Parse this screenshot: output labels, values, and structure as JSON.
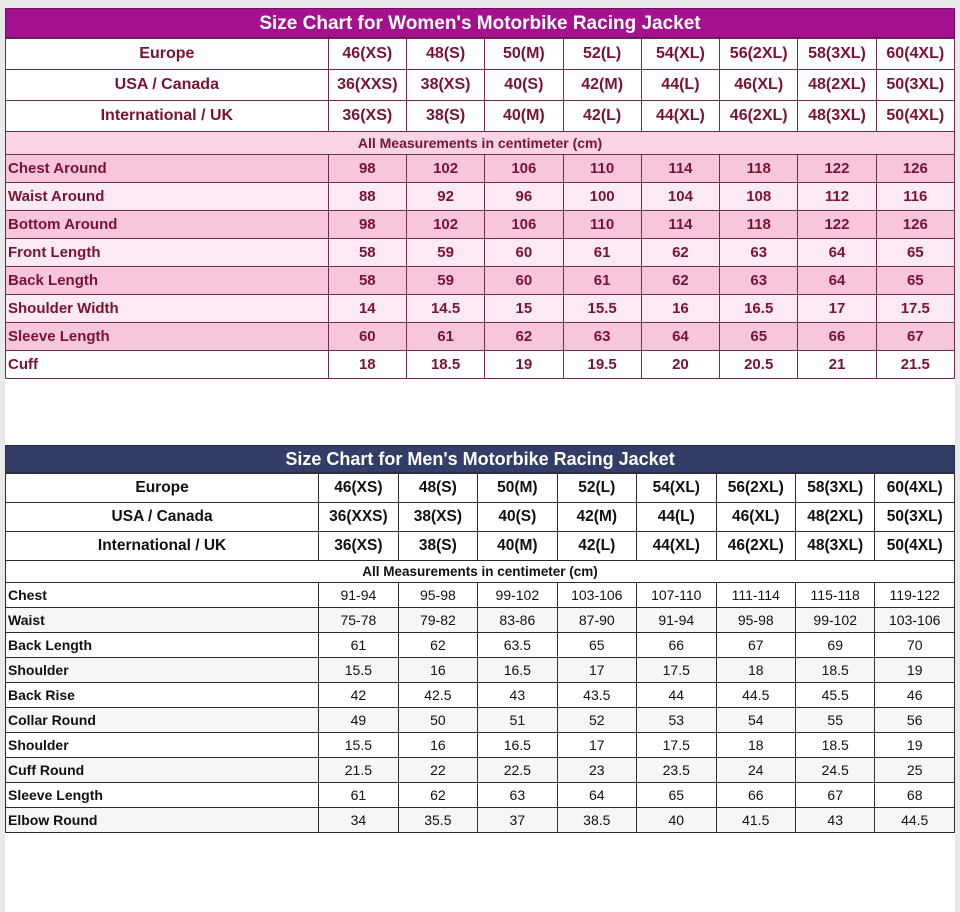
{
  "page": {
    "background_color": "#e9e9e9"
  },
  "women": {
    "title": "Size Chart for Women's Motorbike Racing Jacket",
    "accent_color": "#a3118e",
    "text_color": "#7b1230",
    "header_rows": [
      {
        "label": "Europe",
        "values": [
          "46(XS)",
          "48(S)",
          "50(M)",
          "52(L)",
          "54(XL)",
          "56(2XL)",
          "58(3XL)",
          "60(4XL)"
        ]
      },
      {
        "label": "USA / Canada",
        "values": [
          "36(XXS)",
          "38(XS)",
          "40(S)",
          "42(M)",
          "44(L)",
          "46(XL)",
          "48(2XL)",
          "50(3XL)"
        ]
      },
      {
        "label": "International / UK",
        "values": [
          "36(XS)",
          "38(S)",
          "40(M)",
          "42(L)",
          "44(XL)",
          "46(2XL)",
          "48(3XL)",
          "50(4XL)"
        ]
      }
    ],
    "note": "All Measurements in centimeter (cm)",
    "rows": [
      {
        "label": "Chest Around",
        "values": [
          "98",
          "102",
          "106",
          "110",
          "114",
          "118",
          "122",
          "126"
        ]
      },
      {
        "label": "Waist Around",
        "values": [
          "88",
          "92",
          "96",
          "100",
          "104",
          "108",
          "112",
          "116"
        ]
      },
      {
        "label": "Bottom Around",
        "values": [
          "98",
          "102",
          "106",
          "110",
          "114",
          "118",
          "122",
          "126"
        ]
      },
      {
        "label": "Front Length",
        "values": [
          "58",
          "59",
          "60",
          "61",
          "62",
          "63",
          "64",
          "65"
        ]
      },
      {
        "label": "Back Length",
        "values": [
          "58",
          "59",
          "60",
          "61",
          "62",
          "63",
          "64",
          "65"
        ]
      },
      {
        "label": "Shoulder Width",
        "values": [
          "14",
          "14.5",
          "15",
          "15.5",
          "16",
          "16.5",
          "17",
          "17.5"
        ]
      },
      {
        "label": "Sleeve Length",
        "values": [
          "60",
          "61",
          "62",
          "63",
          "64",
          "65",
          "66",
          "67"
        ]
      },
      {
        "label": "Cuff",
        "values": [
          "18",
          "18.5",
          "19",
          "19.5",
          "20",
          "20.5",
          "21",
          "21.5"
        ]
      }
    ]
  },
  "men": {
    "title": "Size Chart for Men's Motorbike Racing Jacket",
    "accent_color": "#333d68",
    "text_color": "#101010",
    "header_rows": [
      {
        "label": "Europe",
        "values": [
          "46(XS)",
          "48(S)",
          "50(M)",
          "52(L)",
          "54(XL)",
          "56(2XL)",
          "58(3XL)",
          "60(4XL)"
        ]
      },
      {
        "label": "USA / Canada",
        "values": [
          "36(XXS)",
          "38(XS)",
          "40(S)",
          "42(M)",
          "44(L)",
          "46(XL)",
          "48(2XL)",
          "50(3XL)"
        ]
      },
      {
        "label": "International / UK",
        "values": [
          "36(XS)",
          "38(S)",
          "40(M)",
          "42(L)",
          "44(XL)",
          "46(2XL)",
          "48(3XL)",
          "50(4XL)"
        ]
      }
    ],
    "note": "All Measurements in centimeter (cm)",
    "rows": [
      {
        "label": "Chest",
        "values": [
          "91-94",
          "95-98",
          "99-102",
          "103-106",
          "107-110",
          "111-114",
          "115-118",
          "119-122"
        ]
      },
      {
        "label": "Waist",
        "values": [
          "75-78",
          "79-82",
          "83-86",
          "87-90",
          "91-94",
          "95-98",
          "99-102",
          "103-106"
        ]
      },
      {
        "label": "Back Length",
        "values": [
          "61",
          "62",
          "63.5",
          "65",
          "66",
          "67",
          "69",
          "70"
        ]
      },
      {
        "label": "Shoulder",
        "values": [
          "15.5",
          "16",
          "16.5",
          "17",
          "17.5",
          "18",
          "18.5",
          "19"
        ]
      },
      {
        "label": "Back Rise",
        "values": [
          "42",
          "42.5",
          "43",
          "43.5",
          "44",
          "44.5",
          "45.5",
          "46"
        ]
      },
      {
        "label": "Collar Round",
        "values": [
          "49",
          "50",
          "51",
          "52",
          "53",
          "54",
          "55",
          "56"
        ]
      },
      {
        "label": "Shoulder",
        "values": [
          "15.5",
          "16",
          "16.5",
          "17",
          "17.5",
          "18",
          "18.5",
          "19"
        ]
      },
      {
        "label": "Cuff Round",
        "values": [
          "21.5",
          "22",
          "22.5",
          "23",
          "23.5",
          "24",
          "24.5",
          "25"
        ]
      },
      {
        "label": "Sleeve Length",
        "values": [
          "61",
          "62",
          "63",
          "64",
          "65",
          "66",
          "67",
          "68"
        ]
      },
      {
        "label": "Elbow Round",
        "values": [
          "34",
          "35.5",
          "37",
          "38.5",
          "40",
          "41.5",
          "43",
          "44.5"
        ]
      }
    ]
  }
}
